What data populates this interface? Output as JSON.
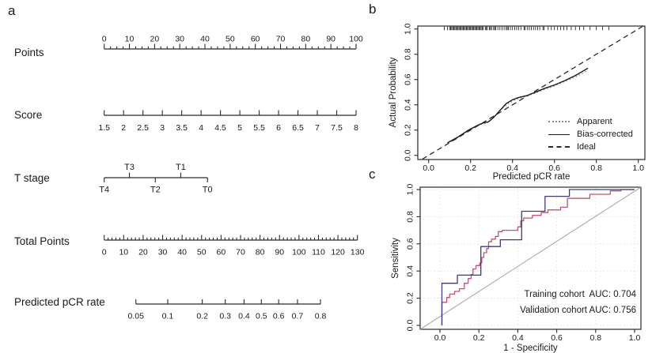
{
  "figure": {
    "panels": [
      {
        "id": "a",
        "label": "a"
      },
      {
        "id": "b",
        "label": "b"
      },
      {
        "id": "c",
        "label": "c"
      }
    ]
  },
  "chart_data": [
    {
      "type": "nomogram",
      "panel": "a",
      "rows": [
        {
          "label": "Points",
          "min": 0,
          "max": 100,
          "major_step": 10,
          "minor_step": 2.5,
          "tick_labels": [
            "0",
            "10",
            "20",
            "30",
            "40",
            "50",
            "60",
            "70",
            "80",
            "90",
            "100"
          ],
          "label_side": "above"
        },
        {
          "label": "Score",
          "min": 1.5,
          "max": 8,
          "values": [
            1.5,
            2,
            2.5,
            3,
            3.5,
            4,
            4.5,
            5,
            5.5,
            6,
            6.5,
            7,
            7.5,
            8
          ],
          "tick_labels": [
            "1.5",
            "2",
            "2.5",
            "3",
            "3.5",
            "4",
            "4.5",
            "5",
            "5.5",
            "6",
            "6.5",
            "7",
            "7.5",
            "8"
          ],
          "label_side": "below"
        },
        {
          "label": "T stage",
          "categories": [
            {
              "label": "T4",
              "points": 0,
              "side": "below"
            },
            {
              "label": "T3",
              "points": 10,
              "side": "above"
            },
            {
              "label": "T2",
              "points": 20.3,
              "side": "below"
            },
            {
              "label": "T1",
              "points": 30.4,
              "side": "above"
            },
            {
              "label": "T0",
              "points": 41,
              "side": "below"
            }
          ]
        },
        {
          "label": "Total Points",
          "min": 0,
          "max": 130,
          "major_step": 10,
          "minor_step": 2,
          "tick_labels": [
            "0",
            "10",
            "20",
            "30",
            "40",
            "50",
            "60",
            "70",
            "80",
            "90",
            "100",
            "110",
            "120",
            "130"
          ],
          "label_side": "below"
        },
        {
          "label": "Predicted pCR rate",
          "scale": "logit",
          "ticks": [
            0.05,
            0.1,
            0.2,
            0.3,
            0.4,
            0.5,
            0.6,
            0.7,
            0.8
          ],
          "tick_labels": [
            "0.05",
            "0.1",
            "0.2",
            "0.3",
            "0.4",
            "0.5",
            "0.6",
            "0.7",
            "0.8"
          ],
          "label_side": "below"
        }
      ]
    },
    {
      "type": "line",
      "panel": "b",
      "xlabel": "Predicted pCR rate",
      "ylabel": "Actual Probability",
      "xlim": [
        0,
        1
      ],
      "ylim": [
        0,
        1
      ],
      "xticks": [
        0,
        0.2,
        0.4,
        0.6,
        0.8,
        1.0
      ],
      "xtick_labels": [
        "0.0",
        "0.2",
        "0.4",
        "0.6",
        "0.8",
        "1.0"
      ],
      "yticks": [
        0,
        0.2,
        0.4,
        0.6,
        0.8,
        1.0
      ],
      "ytick_labels": [
        "0.0",
        "0.2",
        "0.4",
        "0.6",
        "0.8",
        "1.0"
      ],
      "legend_position": "inside-lower-right",
      "rug_x": [
        0.075,
        0.09,
        0.1,
        0.105,
        0.11,
        0.115,
        0.12,
        0.125,
        0.13,
        0.135,
        0.14,
        0.145,
        0.15,
        0.155,
        0.16,
        0.165,
        0.17,
        0.175,
        0.18,
        0.185,
        0.19,
        0.195,
        0.2,
        0.205,
        0.21,
        0.215,
        0.22,
        0.225,
        0.23,
        0.235,
        0.24,
        0.245,
        0.25,
        0.255,
        0.26,
        0.27,
        0.275,
        0.28,
        0.29,
        0.295,
        0.3,
        0.31,
        0.315,
        0.32,
        0.33,
        0.34,
        0.35,
        0.36,
        0.37,
        0.375,
        0.38,
        0.39,
        0.4,
        0.41,
        0.42,
        0.43,
        0.44,
        0.455,
        0.46,
        0.47,
        0.48,
        0.49,
        0.5,
        0.51,
        0.52,
        0.53,
        0.545,
        0.55,
        0.57,
        0.585,
        0.6,
        0.615,
        0.63,
        0.645,
        0.66,
        0.68,
        0.7,
        0.72,
        0.74,
        0.77,
        0.8,
        0.83,
        0.86
      ],
      "series": [
        {
          "name": "Apparent",
          "style": "dotted",
          "color": "#8a8a8a",
          "points": [
            [
              0.09,
              0.095
            ],
            [
              0.15,
              0.15
            ],
            [
              0.2,
              0.205
            ],
            [
              0.25,
              0.245
            ],
            [
              0.28,
              0.258
            ],
            [
              0.31,
              0.3
            ],
            [
              0.35,
              0.37
            ],
            [
              0.38,
              0.41
            ],
            [
              0.42,
              0.445
            ],
            [
              0.46,
              0.465
            ],
            [
              0.5,
              0.487
            ],
            [
              0.55,
              0.52
            ],
            [
              0.6,
              0.55
            ],
            [
              0.65,
              0.585
            ],
            [
              0.7,
              0.62
            ],
            [
              0.76,
              0.672
            ]
          ]
        },
        {
          "name": "Bias-corrected",
          "style": "solid",
          "color": "#1a1a1a",
          "points": [
            [
              0.09,
              0.1
            ],
            [
              0.14,
              0.145
            ],
            [
              0.19,
              0.2
            ],
            [
              0.23,
              0.235
            ],
            [
              0.26,
              0.256
            ],
            [
              0.285,
              0.265
            ],
            [
              0.31,
              0.3
            ],
            [
              0.34,
              0.355
            ],
            [
              0.37,
              0.41
            ],
            [
              0.4,
              0.44
            ],
            [
              0.43,
              0.458
            ],
            [
              0.47,
              0.474
            ],
            [
              0.51,
              0.5
            ],
            [
              0.55,
              0.528
            ],
            [
              0.6,
              0.557
            ],
            [
              0.65,
              0.592
            ],
            [
              0.7,
              0.632
            ],
            [
              0.76,
              0.69
            ]
          ]
        },
        {
          "name": "Ideal",
          "style": "dashed",
          "color": "#2a2a2a",
          "points": [
            [
              -0.03,
              -0.03
            ],
            [
              1.02,
              1.02
            ]
          ]
        }
      ]
    },
    {
      "type": "line",
      "panel": "c",
      "xlabel": "1 - Specificity",
      "ylabel": "Sensitivity",
      "xlim": [
        0,
        1
      ],
      "ylim": [
        0,
        1
      ],
      "xticks": [
        0,
        0.2,
        0.4,
        0.6,
        0.8,
        1.0
      ],
      "xtick_labels": [
        "0.0",
        "0.2",
        "0.4",
        "0.6",
        "0.8",
        "1.0"
      ],
      "yticks": [
        0,
        0.2,
        0.4,
        0.6,
        0.8,
        1.0
      ],
      "ytick_labels": [
        "0.0",
        "0.2",
        "0.4",
        "0.6",
        "0.8",
        "1.0"
      ],
      "grid": true,
      "grid_color": "#e8d9db",
      "diagonal_color": "#ababab",
      "series": [
        {
          "name": "Training cohort",
          "auc": "0.704",
          "color": "#c4546e",
          "points": [
            [
              0.01,
              0
            ],
            [
              0.01,
              0.17
            ],
            [
              0.035,
              0.17
            ],
            [
              0.035,
              0.205
            ],
            [
              0.05,
              0.205
            ],
            [
              0.05,
              0.23
            ],
            [
              0.075,
              0.23
            ],
            [
              0.075,
              0.25
            ],
            [
              0.1,
              0.25
            ],
            [
              0.1,
              0.27
            ],
            [
              0.125,
              0.27
            ],
            [
              0.125,
              0.31
            ],
            [
              0.145,
              0.31
            ],
            [
              0.145,
              0.345
            ],
            [
              0.16,
              0.345
            ],
            [
              0.16,
              0.375
            ],
            [
              0.17,
              0.375
            ],
            [
              0.17,
              0.415
            ],
            [
              0.185,
              0.415
            ],
            [
              0.185,
              0.44
            ],
            [
              0.205,
              0.44
            ],
            [
              0.205,
              0.46
            ],
            [
              0.215,
              0.46
            ],
            [
              0.215,
              0.5
            ],
            [
              0.225,
              0.5
            ],
            [
              0.225,
              0.535
            ],
            [
              0.24,
              0.535
            ],
            [
              0.24,
              0.565
            ],
            [
              0.25,
              0.565
            ],
            [
              0.25,
              0.615
            ],
            [
              0.265,
              0.615
            ],
            [
              0.265,
              0.635
            ],
            [
              0.285,
              0.635
            ],
            [
              0.285,
              0.655
            ],
            [
              0.3,
              0.655
            ],
            [
              0.3,
              0.69
            ],
            [
              0.32,
              0.69
            ],
            [
              0.32,
              0.7
            ],
            [
              0.4,
              0.7
            ],
            [
              0.4,
              0.725
            ],
            [
              0.415,
              0.725
            ],
            [
              0.415,
              0.77
            ],
            [
              0.43,
              0.77
            ],
            [
              0.43,
              0.79
            ],
            [
              0.475,
              0.79
            ],
            [
              0.475,
              0.81
            ],
            [
              0.52,
              0.81
            ],
            [
              0.52,
              0.83
            ],
            [
              0.555,
              0.83
            ],
            [
              0.555,
              0.85
            ],
            [
              0.62,
              0.85
            ],
            [
              0.62,
              0.87
            ],
            [
              0.655,
              0.87
            ],
            [
              0.655,
              0.935
            ],
            [
              0.77,
              0.935
            ],
            [
              0.77,
              0.965
            ],
            [
              0.875,
              0.965
            ],
            [
              0.875,
              0.99
            ],
            [
              0.93,
              0.99
            ],
            [
              0.93,
              1.0
            ],
            [
              1.0,
              1.0
            ]
          ]
        },
        {
          "name": "Validation cohort",
          "auc": "0.756",
          "color": "#3d3d78",
          "points": [
            [
              0.01,
              0
            ],
            [
              0.01,
              0.31
            ],
            [
              0.09,
              0.31
            ],
            [
              0.09,
              0.37
            ],
            [
              0.21,
              0.37
            ],
            [
              0.21,
              0.58
            ],
            [
              0.31,
              0.58
            ],
            [
              0.31,
              0.63
            ],
            [
              0.42,
              0.63
            ],
            [
              0.42,
              0.84
            ],
            [
              0.54,
              0.84
            ],
            [
              0.54,
              0.95
            ],
            [
              0.665,
              0.95
            ],
            [
              0.665,
              1.0
            ],
            [
              1.0,
              1.0
            ]
          ]
        }
      ],
      "annotations": [
        "Training cohort  AUC: 0.704",
        "Validation cohort AUC: 0.756"
      ]
    }
  ]
}
